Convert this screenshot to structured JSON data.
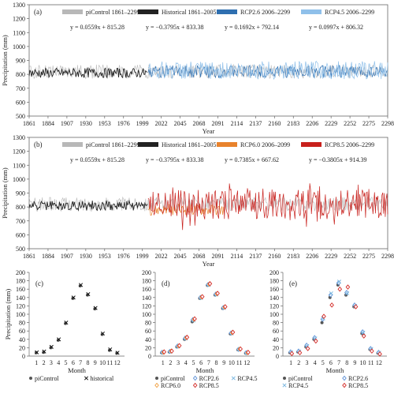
{
  "chart_data": [
    {
      "type": "line",
      "panel_label": "(a)",
      "xlabel": "Year",
      "ylabel": "Precipitation (mm)",
      "xlim": [
        1861,
        2298
      ],
      "ylim": [
        500,
        1300
      ],
      "xticks": [
        1861,
        1884,
        1907,
        1930,
        1953,
        1976,
        1999,
        2022,
        2045,
        2068,
        2091,
        2114,
        2137,
        2160,
        2183,
        2206,
        2229,
        2252,
        2275,
        2298
      ],
      "yticks": [
        500,
        600,
        700,
        800,
        900,
        1000,
        1100,
        1200,
        1300
      ],
      "series": [
        {
          "name": "piControl 1861–2299",
          "color": "#b8b8b8",
          "range": [
            1861,
            2299
          ],
          "trend": "y = 0.0559x + 815.28",
          "base": 820,
          "amp": 50
        },
        {
          "name": "Historical 1861–2005",
          "color": "#222222",
          "range": [
            1861,
            2005
          ],
          "trend": "y = −0.3795x + 833.38",
          "base": 810,
          "amp": 35
        },
        {
          "name": "RCP2.6 2006–2299",
          "color": "#2f6fb0",
          "range": [
            2006,
            2299
          ],
          "trend": "y = 0.1692x + 792.14",
          "base": 820,
          "amp": 45
        },
        {
          "name": "RCP4.5 2006–2299",
          "color": "#8fc0ea",
          "range": [
            2006,
            2299
          ],
          "trend": "y = 0.0997x + 806.32",
          "base": 830,
          "amp": 65
        }
      ]
    },
    {
      "type": "line",
      "panel_label": "(b)",
      "xlabel": "Year",
      "ylabel": "Precipitation (mm)",
      "xlim": [
        1861,
        2298
      ],
      "ylim": [
        500,
        1300
      ],
      "xticks": [
        1861,
        1884,
        1907,
        1930,
        1953,
        1976,
        1999,
        2022,
        2045,
        2068,
        2091,
        2114,
        2137,
        2160,
        2183,
        2206,
        2229,
        2252,
        2275,
        2298
      ],
      "yticks": [
        500,
        600,
        700,
        800,
        900,
        1000,
        1100,
        1200,
        1300
      ],
      "series": [
        {
          "name": "piControl 1861–2299",
          "color": "#b8b8b8",
          "range": [
            1861,
            2299
          ],
          "trend": "y = 0.0559x + 815.28",
          "base": 820,
          "amp": 50
        },
        {
          "name": "Historical 1861–2005",
          "color": "#222222",
          "range": [
            1861,
            2005
          ],
          "trend": "y = −0.3795x + 833.38",
          "base": 810,
          "amp": 35
        },
        {
          "name": "RCP6.0 2006–2099",
          "color": "#e8822c",
          "range": [
            2006,
            2099
          ],
          "trend": "y = 0.7385x + 667.62",
          "base": 780,
          "amp": 40
        },
        {
          "name": "RCP8.5 2006–2299",
          "color": "#c8201c",
          "range": [
            2006,
            2299
          ],
          "trend": "y = −0.3805x + 914.39",
          "base": 820,
          "amp": 110
        }
      ]
    },
    {
      "type": "scatter",
      "panel_label": "(c)",
      "xlabel": "Month",
      "ylabel": "Precipitation (mm)",
      "categories": [
        "1",
        "2",
        "3",
        "4",
        "5",
        "6",
        "7",
        "8",
        "9",
        "10",
        "11",
        "12"
      ],
      "ylim": [
        0,
        200
      ],
      "yticks": [
        0,
        20,
        40,
        60,
        80,
        100,
        120,
        140,
        160,
        180,
        200
      ],
      "series": [
        {
          "name": "piControl",
          "marker": "dot",
          "color": "#555555",
          "values": [
            8,
            9,
            20,
            38,
            78,
            138,
            168,
            146,
            113,
            52,
            14,
            7
          ]
        },
        {
          "name": "historical",
          "marker": "x",
          "color": "#111111",
          "values": [
            9,
            11,
            22,
            40,
            80,
            140,
            170,
            148,
            115,
            54,
            16,
            8
          ]
        }
      ]
    },
    {
      "type": "scatter",
      "panel_label": "(d)",
      "xlabel": "Month",
      "ylabel": "",
      "categories": [
        "1",
        "2",
        "3",
        "4",
        "5",
        "6",
        "7",
        "8",
        "9",
        "10",
        "11",
        "12"
      ],
      "ylim": [
        0,
        200
      ],
      "yticks": [
        0,
        20,
        40,
        60,
        80,
        100,
        120,
        140,
        160,
        180,
        200
      ],
      "series": [
        {
          "name": "piControl",
          "marker": "dot",
          "color": "#555555",
          "values": [
            8,
            10,
            22,
            40,
            82,
            138,
            169,
            146,
            114,
            53,
            15,
            7
          ]
        },
        {
          "name": "RCP2.6",
          "marker": "diamond",
          "color": "#5b8fd6",
          "values": [
            9,
            11,
            24,
            43,
            87,
            140,
            171,
            148,
            116,
            55,
            16,
            8
          ]
        },
        {
          "name": "RCP4.5",
          "marker": "x",
          "color": "#7ab7e0",
          "values": [
            9,
            11,
            23,
            42,
            85,
            139,
            170,
            147,
            115,
            54,
            16,
            8
          ]
        },
        {
          "name": "RCP6.0",
          "marker": "diamond",
          "color": "#f0a040",
          "values": [
            9,
            12,
            24,
            44,
            88,
            141,
            172,
            149,
            117,
            56,
            17,
            8
          ]
        },
        {
          "name": "RCP8.5",
          "marker": "diamond",
          "color": "#d32a26",
          "values": [
            10,
            12,
            25,
            45,
            89,
            142,
            173,
            150,
            118,
            57,
            17,
            9
          ]
        }
      ]
    },
    {
      "type": "scatter",
      "panel_label": "(e)",
      "xlabel": "Month",
      "ylabel": "",
      "categories": [
        "1",
        "2",
        "3",
        "4",
        "5",
        "6",
        "7",
        "8",
        "9",
        "10",
        "11",
        "12"
      ],
      "ylim": [
        0,
        200
      ],
      "yticks": [
        0,
        20,
        40,
        60,
        80,
        100,
        120,
        140,
        160,
        180,
        200
      ],
      "series": [
        {
          "name": "piControl",
          "marker": "dot",
          "color": "#555555",
          "values": [
            8,
            10,
            22,
            40,
            80,
            140,
            170,
            146,
            118,
            54,
            16,
            7
          ]
        },
        {
          "name": "RCP2.6",
          "marker": "diamond",
          "color": "#5b8fd6",
          "values": [
            10,
            12,
            26,
            44,
            88,
            146,
            175,
            152,
            122,
            58,
            18,
            9
          ]
        },
        {
          "name": "RCP4.5",
          "marker": "x",
          "color": "#7ab7e0",
          "values": [
            9,
            11,
            24,
            42,
            90,
            150,
            178,
            150,
            120,
            56,
            17,
            8
          ]
        },
        {
          "name": "RCP8.5",
          "marker": "diamond",
          "color": "#d32a26",
          "values": [
            6,
            8,
            18,
            36,
            95,
            122,
            160,
            165,
            118,
            48,
            12,
            5
          ]
        }
      ]
    }
  ]
}
